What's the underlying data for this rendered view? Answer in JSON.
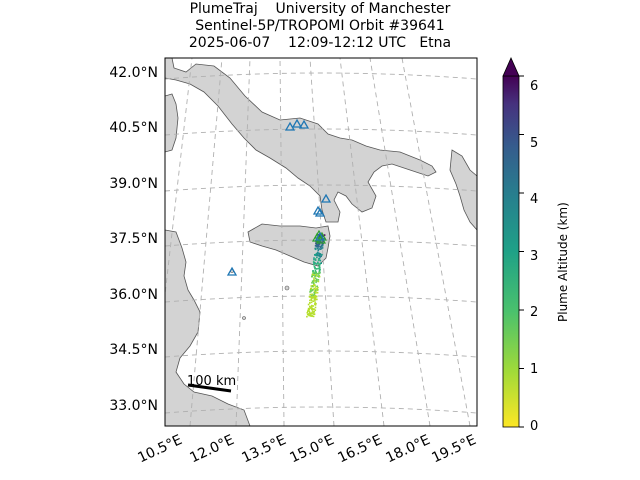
{
  "title": {
    "line1": "PlumeTraj    University of Manchester",
    "line2": "Sentinel-5P/TROPOMI Orbit #39641",
    "line3": "2025-06-07    12:09-12:12 UTC   Etna"
  },
  "map": {
    "lat_labels": [
      "42.0°N",
      "40.5°N",
      "39.0°N",
      "37.5°N",
      "36.0°N",
      "34.5°N",
      "33.0°N"
    ],
    "lon_labels": [
      "10.5°E",
      "12.0°E",
      "13.5°E",
      "15.0°E",
      "16.5°E",
      "18.0°E",
      "19.5°E"
    ],
    "scale_bar_label": "100 km",
    "land_color": "#d3d3d3",
    "sea_color": "#ffffff",
    "volcano_marker_color": "#1f77b4"
  },
  "colorbar": {
    "label": "Plume Altitude (km)",
    "ticks": [
      "0",
      "1",
      "2",
      "3",
      "4",
      "5",
      "6"
    ],
    "min": 0,
    "max": 6,
    "colormap": "viridis_r"
  }
}
